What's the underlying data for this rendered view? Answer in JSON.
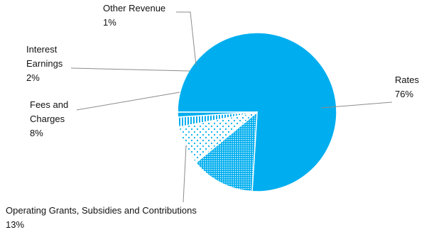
{
  "chart_data": {
    "type": "pie",
    "categories": [
      "Rates",
      "Operating Grants, Subsidies and Contributions",
      "Fees and Charges",
      "Interest Earnings",
      "Other Revenue"
    ],
    "values": [
      76,
      13,
      8,
      2,
      1
    ],
    "percent_labels": [
      "76%",
      "13%",
      "8%",
      "2%",
      "1%"
    ],
    "label_lines": [
      [
        "Rates"
      ],
      [
        "Operating Grants, Subsidies and Contributions"
      ],
      [
        "Fees and",
        "Charges"
      ],
      [
        "Interest",
        "Earnings"
      ],
      [
        "Other Revenue"
      ]
    ],
    "fills": [
      "solid",
      "dense-dots",
      "sparse-dots",
      "vertical-stripes",
      "solid"
    ],
    "colors": {
      "slice": "#00aeef",
      "slice_edge": "#ffffff",
      "leader_line": "#8c8c8c",
      "text": "#111111"
    },
    "legend": "none",
    "labels_outside_with_leader_lines": true
  }
}
